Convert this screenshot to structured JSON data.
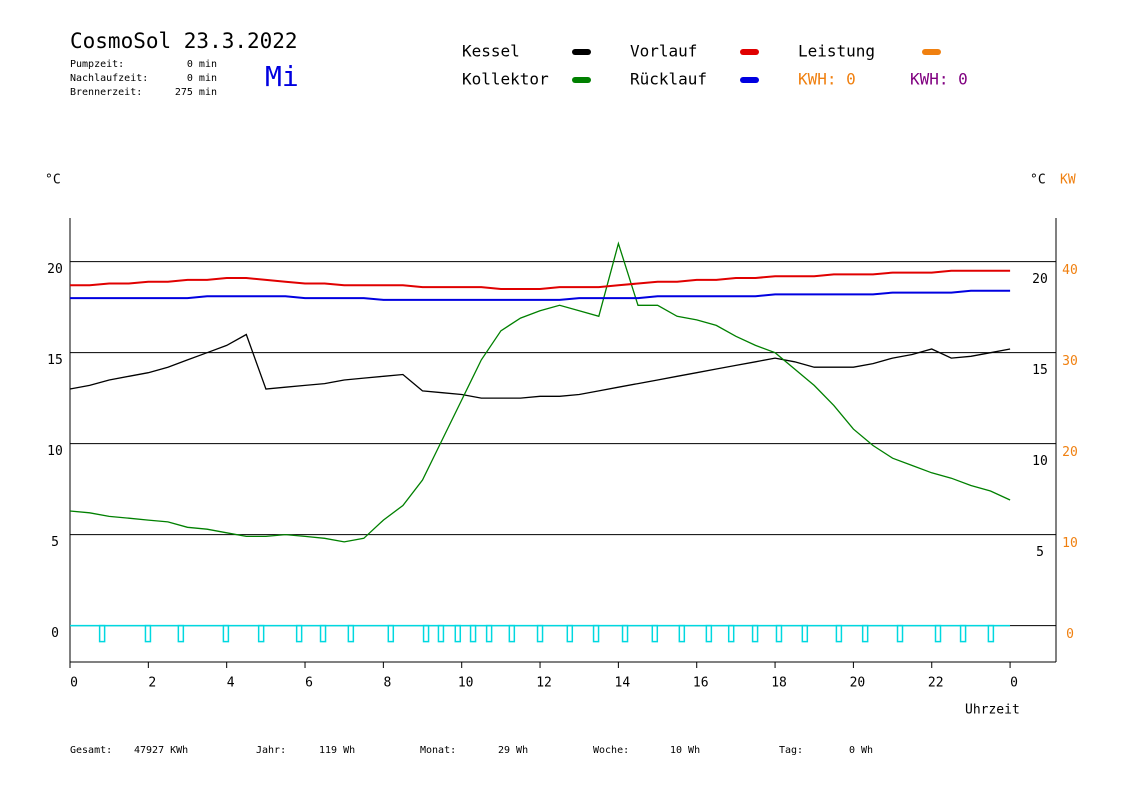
{
  "chart_data": {
    "type": "line",
    "title": "CosmoSol 23.3.2022",
    "weekday": "Mi",
    "info": [
      {
        "label": "Pumpzeit:",
        "value": "0 min"
      },
      {
        "label": "Nachlaufzeit:",
        "value": "0 min"
      },
      {
        "label": "Brennerzeit:",
        "value": "275 min"
      }
    ],
    "y_unit": "°C",
    "y_unit_right": "°C",
    "y2_unit": "KW",
    "x_label": "Uhrzeit",
    "x": [
      0,
      0.5,
      1,
      1.5,
      2,
      2.5,
      3,
      3.5,
      4,
      4.5,
      5,
      5.5,
      6,
      6.5,
      7,
      7.5,
      8,
      8.5,
      9,
      9.5,
      10,
      10.5,
      11,
      11.5,
      12,
      12.5,
      13,
      13.5,
      14,
      14.5,
      15,
      15.5,
      16,
      16.5,
      17,
      17.5,
      18,
      18.5,
      19,
      19.5,
      20,
      20.5,
      21,
      21.5,
      22,
      22.5,
      23,
      23.5,
      24
    ],
    "series": [
      {
        "name": "Kessel",
        "color": "#000000",
        "values": [
          13.0,
          13.2,
          13.5,
          13.7,
          13.9,
          14.2,
          14.6,
          15.0,
          15.4,
          16.0,
          13.0,
          13.1,
          13.2,
          13.3,
          13.5,
          13.6,
          13.7,
          13.8,
          12.9,
          12.8,
          12.7,
          12.5,
          12.5,
          12.5,
          12.6,
          12.6,
          12.7,
          12.9,
          13.1,
          13.3,
          13.5,
          13.7,
          13.9,
          14.1,
          14.3,
          14.5,
          14.7,
          14.5,
          14.2,
          14.2,
          14.2,
          14.4,
          14.7,
          14.9,
          15.2,
          14.7,
          14.8,
          15.0,
          15.2
        ]
      },
      {
        "name": "Kollektor",
        "color": "#008000",
        "values": [
          6.3,
          6.2,
          6.0,
          5.9,
          5.8,
          5.7,
          5.4,
          5.3,
          5.1,
          4.9,
          4.9,
          5.0,
          4.9,
          4.8,
          4.6,
          4.8,
          5.8,
          6.6,
          8.0,
          10.2,
          12.4,
          14.6,
          16.2,
          16.9,
          17.3,
          17.6,
          17.3,
          17.0,
          21.0,
          17.6,
          17.6,
          17.0,
          16.8,
          16.5,
          15.9,
          15.4,
          15.0,
          14.1,
          13.2,
          12.1,
          10.8,
          9.9,
          9.2,
          8.8,
          8.4,
          8.1,
          7.7,
          7.4,
          6.9
        ]
      },
      {
        "name": "Vorlauf",
        "color": "#e00000",
        "values": [
          18.7,
          18.7,
          18.8,
          18.8,
          18.9,
          18.9,
          19.0,
          19.0,
          19.1,
          19.1,
          19.0,
          18.9,
          18.8,
          18.8,
          18.7,
          18.7,
          18.7,
          18.7,
          18.6,
          18.6,
          18.6,
          18.6,
          18.5,
          18.5,
          18.5,
          18.6,
          18.6,
          18.6,
          18.7,
          18.8,
          18.9,
          18.9,
          19.0,
          19.0,
          19.1,
          19.1,
          19.2,
          19.2,
          19.2,
          19.3,
          19.3,
          19.3,
          19.4,
          19.4,
          19.4,
          19.5,
          19.5,
          19.5,
          19.5
        ]
      },
      {
        "name": "Rücklauf",
        "color": "#0000e0",
        "values": [
          18.0,
          18.0,
          18.0,
          18.0,
          18.0,
          18.0,
          18.0,
          18.1,
          18.1,
          18.1,
          18.1,
          18.1,
          18.0,
          18.0,
          18.0,
          18.0,
          17.9,
          17.9,
          17.9,
          17.9,
          17.9,
          17.9,
          17.9,
          17.9,
          17.9,
          17.9,
          18.0,
          18.0,
          18.0,
          18.0,
          18.1,
          18.1,
          18.1,
          18.1,
          18.1,
          18.1,
          18.2,
          18.2,
          18.2,
          18.2,
          18.2,
          18.2,
          18.3,
          18.3,
          18.3,
          18.3,
          18.4,
          18.4,
          18.4
        ]
      }
    ],
    "power": {
      "name": "Leistung",
      "color": "#f08010",
      "kwh": [
        {
          "text": "KWH: 0",
          "color": "#f08010"
        },
        {
          "text": "KWH: 0",
          "color": "#800080"
        }
      ]
    },
    "pump": {
      "color": "#00d8e0",
      "x": [
        0.82,
        1.99,
        2.83,
        3.98,
        4.88,
        5.85,
        6.46,
        7.17,
        8.19,
        9.09,
        9.47,
        9.9,
        10.29,
        10.7,
        11.28,
        12.0,
        12.76,
        13.43,
        14.17,
        14.93,
        15.62,
        16.31,
        16.88,
        17.49,
        18.1,
        18.76,
        19.63,
        20.3,
        21.19,
        22.16,
        22.8,
        23.51
      ]
    },
    "xlim": [
      0,
      25.2
    ],
    "xticks": [
      0,
      2,
      4,
      6,
      8,
      10,
      12,
      14,
      16,
      18,
      20,
      22,
      {
        "value": 24,
        "label": "0"
      }
    ],
    "ylim": [
      -2,
      22.4
    ],
    "yticks": [
      0,
      5,
      10,
      15,
      20
    ],
    "yticks_right": [
      5,
      10,
      15,
      20
    ],
    "y2lim": [
      -4,
      44.8
    ],
    "y2ticks": [
      0,
      10,
      20,
      30,
      40
    ],
    "y2color": "#f08010",
    "grid": true,
    "footer": [
      {
        "label": "Gesamt:",
        "value": "47927 KWh"
      },
      {
        "label": "Jahr:",
        "value": "119 Wh"
      },
      {
        "label": "Monat:",
        "value": "29 Wh"
      },
      {
        "label": "Woche:",
        "value": "10 Wh"
      },
      {
        "label": "Tag:",
        "value": "0 Wh"
      }
    ]
  }
}
